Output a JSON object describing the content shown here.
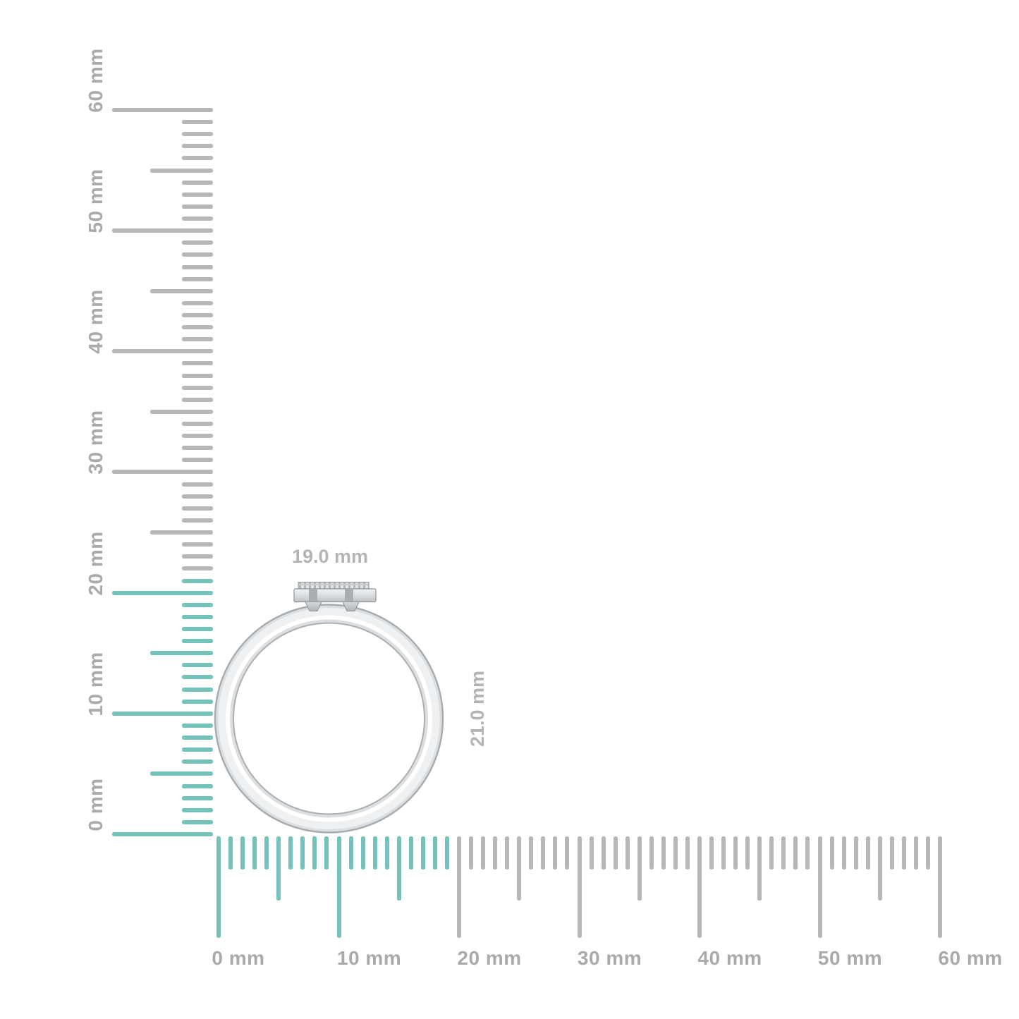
{
  "figure": {
    "background": "#ffffff",
    "description": "Ring profile shown to scale against millimeter rulers"
  },
  "colors": {
    "highlight": "#74c3ba",
    "tick": "#b7b7b7",
    "label": "#a8aaac",
    "dim_label": "#b2b4b6"
  },
  "ring": {
    "width_label": "19.0 mm",
    "height_label": "21.0 mm"
  },
  "vertical_ruler": {
    "unit": "mm",
    "min_mm": 0,
    "max_mm": 60,
    "minor_step_mm": 1,
    "medium_step_mm": 5,
    "major_step_mm": 10,
    "highlight_to_mm": 21,
    "labels": [
      {
        "mm": 0,
        "text": "0 mm"
      },
      {
        "mm": 10,
        "text": "10 mm"
      },
      {
        "mm": 20,
        "text": "20 mm"
      },
      {
        "mm": 30,
        "text": "30 mm"
      },
      {
        "mm": 40,
        "text": "40 mm"
      },
      {
        "mm": 50,
        "text": "50 mm"
      },
      {
        "mm": 60,
        "text": "60 mm"
      }
    ]
  },
  "horizontal_ruler": {
    "unit": "mm",
    "min_mm": 0,
    "max_mm": 60,
    "minor_step_mm": 1,
    "medium_step_mm": 5,
    "major_step_mm": 10,
    "highlight_to_mm": 19,
    "labels": [
      {
        "mm": 0,
        "text": "0 mm"
      },
      {
        "mm": 10,
        "text": "10 mm"
      },
      {
        "mm": 20,
        "text": "20 mm"
      },
      {
        "mm": 30,
        "text": "30 mm"
      },
      {
        "mm": 40,
        "text": "40 mm"
      },
      {
        "mm": 50,
        "text": "50 mm"
      },
      {
        "mm": 60,
        "text": "60 mm"
      }
    ]
  }
}
